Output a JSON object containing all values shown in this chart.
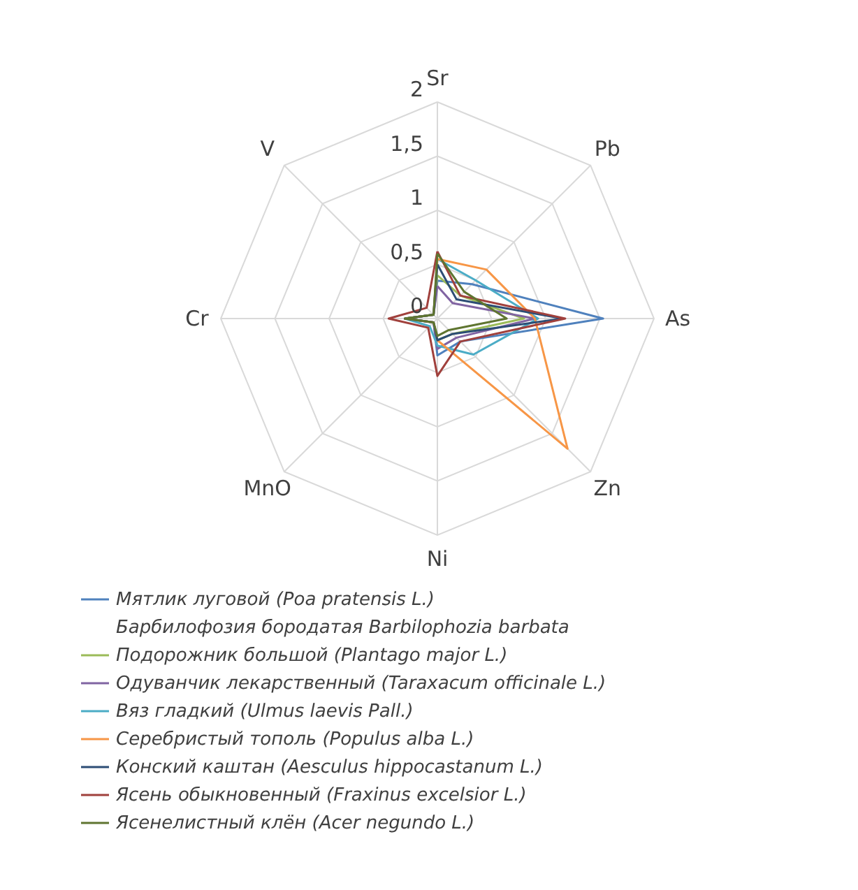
{
  "chart_data": {
    "type": "radar",
    "categories": [
      "Sr",
      "Pb",
      "As",
      "Zn",
      "Ni",
      "MnO",
      "Cr",
      "V"
    ],
    "ylim": [
      0,
      2
    ],
    "yticks": [
      0,
      {
        "value": 0.5,
        "label": "0,5"
      },
      1,
      {
        "value": 1.5,
        "label": "1,5"
      },
      2
    ],
    "legend": "bottom",
    "series": [
      {
        "name": "Мятлик луговой (Poa pratensis L.)",
        "color": "#4f81bd",
        "values": [
          0.35,
          0.45,
          1.53,
          0.3,
          0.34,
          0.05,
          0.3,
          0.05
        ]
      },
      {
        "name": "Барбилофозия бородатая Barbilophozia barbata",
        "color": "#ffffff",
        "values": [
          null,
          null,
          null,
          null,
          null,
          null,
          null,
          null
        ]
      },
      {
        "name": "Подорожник большой (Plantago major L.)",
        "color": "#9bbb59",
        "values": [
          0.4,
          0.3,
          0.8,
          0.2,
          0.2,
          0.05,
          0.3,
          0.05
        ]
      },
      {
        "name": "Одуванчик лекарственный (Taraxacum officinale L.)",
        "color": "#8064a2",
        "values": [
          0.3,
          0.2,
          0.9,
          0.25,
          0.28,
          0.05,
          0.3,
          0.05
        ]
      },
      {
        "name": "Вяз гладкий (Ulmus laevis Pall.)",
        "color": "#4bacc6",
        "values": [
          0.55,
          0.5,
          0.93,
          0.47,
          0.25,
          0.1,
          0.3,
          0.05
        ]
      },
      {
        "name": "Серебристый тополь (Populus alba L.)",
        "color": "#f79646",
        "values": [
          0.55,
          0.64,
          0.9,
          1.7,
          0.2,
          0.05,
          0.3,
          0.05
        ]
      },
      {
        "name": "Конский каштан  (Aesculus hippocastanum L.)",
        "color": "#2c4d75",
        "values": [
          0.5,
          0.25,
          1.16,
          0.2,
          0.2,
          0.05,
          0.3,
          0.05
        ]
      },
      {
        "name": "Ясень обыкновенный (Fraxinus excelsior L.)",
        "color": "#a0403c",
        "values": [
          0.62,
          0.3,
          1.18,
          0.3,
          0.53,
          0.12,
          0.45,
          0.14
        ]
      },
      {
        "name": "Ясенелистный клён (Acer negundo L.)",
        "color": "#5f7530",
        "values": [
          0.6,
          0.35,
          0.64,
          0.15,
          0.16,
          0.05,
          0.3,
          0.05
        ]
      }
    ]
  }
}
